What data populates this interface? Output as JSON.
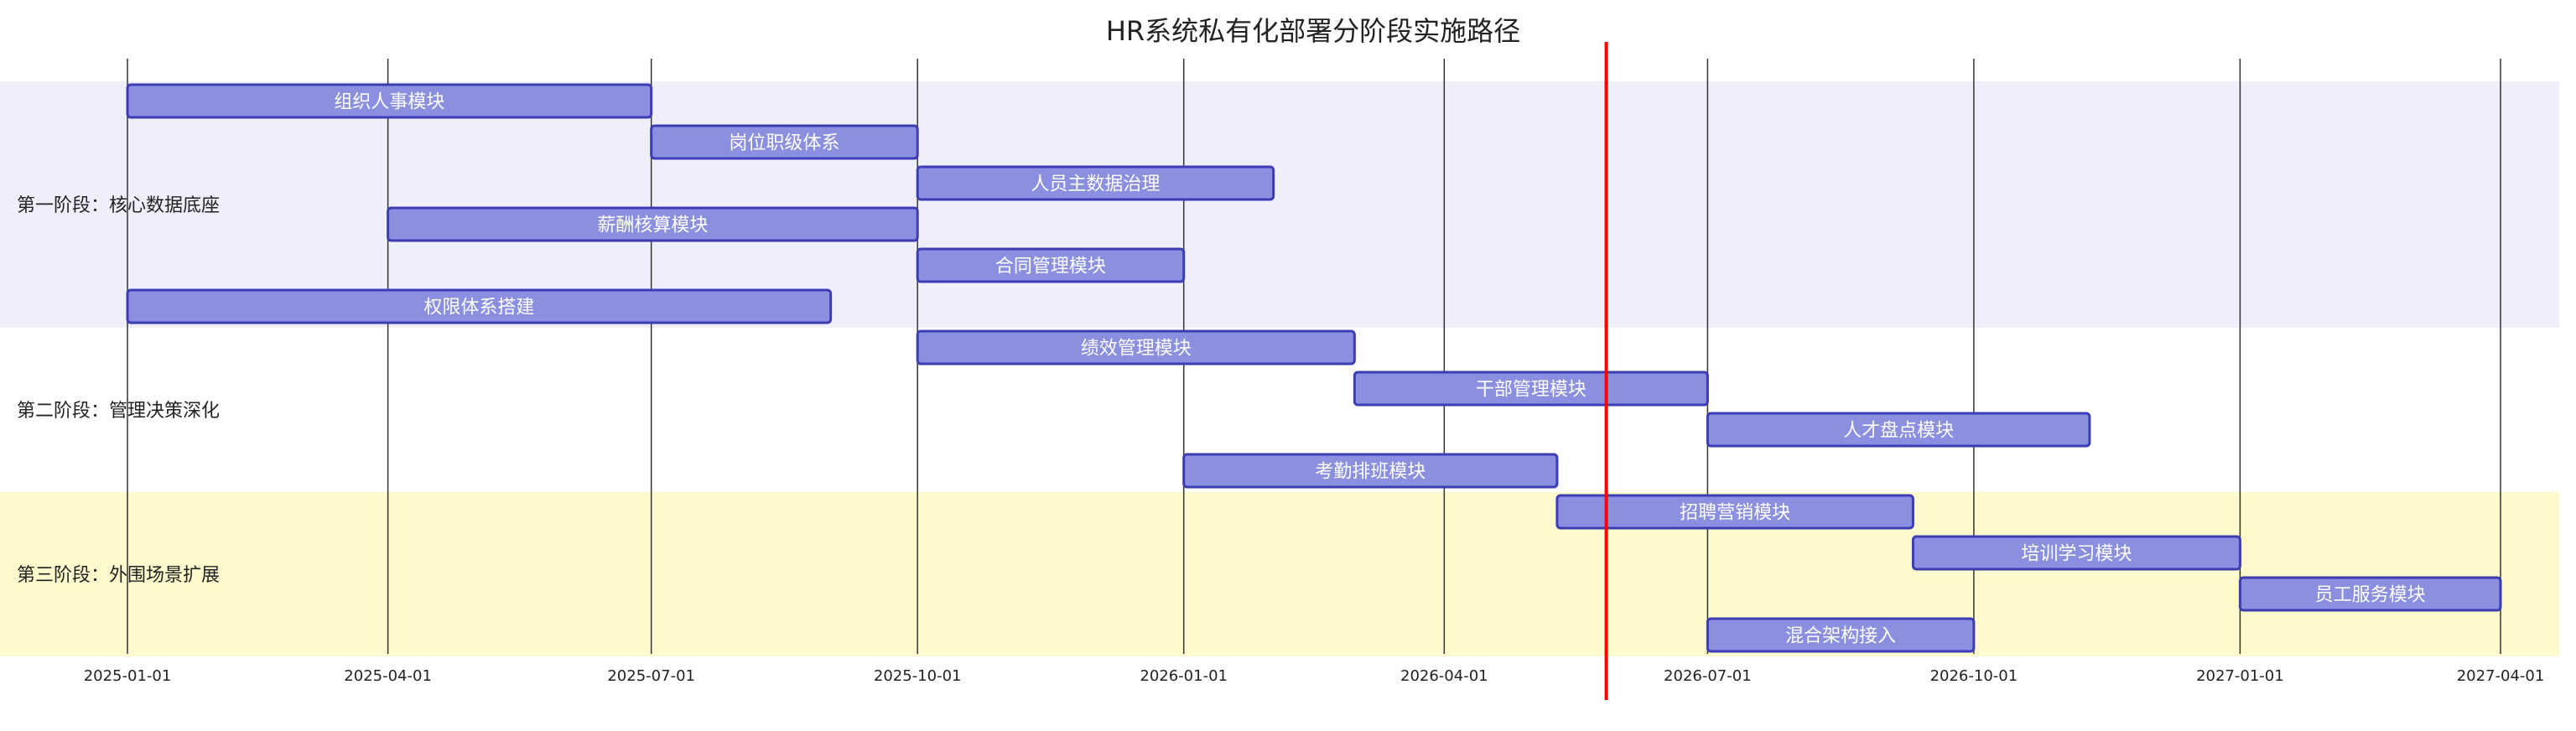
{
  "chart_data": {
    "type": "gantt",
    "title": "HR系统私有化部署分阶段实施路径",
    "x_ticks": [
      "2025-01-01",
      "2025-04-01",
      "2025-07-01",
      "2025-10-01",
      "2026-01-01",
      "2026-04-01",
      "2026-07-01",
      "2026-10-01",
      "2027-01-01",
      "2027-04-01"
    ],
    "xlim": [
      "2025-01-01",
      "2027-04-01"
    ],
    "today_marker": "2026-05-27",
    "today_marker_color": "#ff0000",
    "grid": true,
    "sections": [
      {
        "name": "第一阶段：核心数据底座",
        "color": "#efeffc"
      },
      {
        "name": "第二阶段：管理决策深化",
        "color": "#ffffff"
      },
      {
        "name": "第三阶段：外围场景扩展",
        "color": "#fffacd"
      }
    ],
    "bar_fill": "#8a8fe0",
    "bar_stroke": "#3c3cb4",
    "tasks": [
      {
        "label": "组织人事模块",
        "section": 0,
        "start": "2025-01-01",
        "end": "2025-07-01"
      },
      {
        "label": "岗位职级体系",
        "section": 0,
        "start": "2025-07-01",
        "end": "2025-10-01"
      },
      {
        "label": "人员主数据治理",
        "section": 0,
        "start": "2025-10-01",
        "end": "2026-02-01"
      },
      {
        "label": "薪酬核算模块",
        "section": 0,
        "start": "2025-04-01",
        "end": "2025-10-01"
      },
      {
        "label": "合同管理模块",
        "section": 0,
        "start": "2025-10-01",
        "end": "2026-01-01"
      },
      {
        "label": "权限体系搭建",
        "section": 0,
        "start": "2025-01-01",
        "end": "2025-09-01"
      },
      {
        "label": "绩效管理模块",
        "section": 1,
        "start": "2025-10-01",
        "end": "2026-03-01"
      },
      {
        "label": "干部管理模块",
        "section": 1,
        "start": "2026-03-01",
        "end": "2026-07-01"
      },
      {
        "label": "人才盘点模块",
        "section": 1,
        "start": "2026-07-01",
        "end": "2026-11-10"
      },
      {
        "label": "考勤排班模块",
        "section": 1,
        "start": "2026-01-01",
        "end": "2026-05-10"
      },
      {
        "label": "招聘营销模块",
        "section": 2,
        "start": "2026-05-10",
        "end": "2026-09-10"
      },
      {
        "label": "培训学习模块",
        "section": 2,
        "start": "2026-09-10",
        "end": "2027-01-01"
      },
      {
        "label": "员工服务模块",
        "section": 2,
        "start": "2027-01-01",
        "end": "2027-04-01"
      },
      {
        "label": "混合架构接入",
        "section": 2,
        "start": "2026-07-01",
        "end": "2026-10-01"
      }
    ]
  }
}
